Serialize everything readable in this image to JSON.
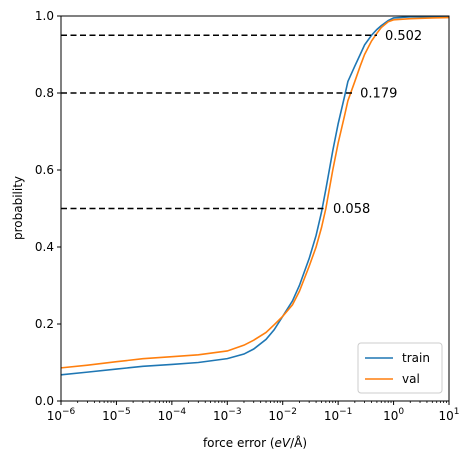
{
  "chart_data": {
    "type": "line",
    "xscale": "log",
    "xlabel_prefix": "force error (",
    "xlabel_unit": "eV",
    "xlabel_suffix": "/Å)",
    "ylabel": "probability",
    "xlim": [
      1e-06,
      10
    ],
    "ylim": [
      0.0,
      1.0
    ],
    "xticks": [
      {
        "exp": "-6",
        "value": 1e-06
      },
      {
        "exp": "-5",
        "value": 1e-05
      },
      {
        "exp": "-4",
        "value": 0.0001
      },
      {
        "exp": "-3",
        "value": 0.001
      },
      {
        "exp": "-2",
        "value": 0.01
      },
      {
        "exp": "-1",
        "value": 0.1
      },
      {
        "exp": "0",
        "value": 1
      },
      {
        "exp": "1",
        "value": 10
      }
    ],
    "yticks": [
      "0.0",
      "0.2",
      "0.4",
      "0.6",
      "0.8",
      "1.0"
    ],
    "legend_position": "bottom-right",
    "series": [
      {
        "name": "train",
        "color": "#1f77b4",
        "x": [
          1e-06,
          3e-06,
          1e-05,
          3e-05,
          0.0001,
          0.0003,
          0.001,
          0.002,
          0.003,
          0.005,
          0.007,
          0.01,
          0.015,
          0.02,
          0.03,
          0.04,
          0.05,
          0.06,
          0.08,
          0.1,
          0.13,
          0.15,
          0.2,
          0.25,
          0.3,
          0.4,
          0.5,
          0.6,
          0.8,
          1,
          2,
          5,
          10
        ],
        "y": [
          0.068,
          0.075,
          0.083,
          0.09,
          0.095,
          0.1,
          0.11,
          0.122,
          0.135,
          0.16,
          0.185,
          0.22,
          0.26,
          0.3,
          0.37,
          0.43,
          0.49,
          0.55,
          0.65,
          0.72,
          0.79,
          0.83,
          0.87,
          0.9,
          0.925,
          0.95,
          0.965,
          0.975,
          0.988,
          0.995,
          0.998,
          0.998,
          0.998
        ]
      },
      {
        "name": "val",
        "color": "#ff7f0e",
        "x": [
          1e-06,
          3e-06,
          1e-05,
          3e-05,
          0.0001,
          0.0003,
          0.001,
          0.002,
          0.003,
          0.005,
          0.007,
          0.01,
          0.015,
          0.02,
          0.03,
          0.04,
          0.05,
          0.06,
          0.08,
          0.1,
          0.13,
          0.15,
          0.2,
          0.25,
          0.3,
          0.4,
          0.5,
          0.6,
          0.8,
          1,
          2,
          5,
          10
        ],
        "y": [
          0.086,
          0.093,
          0.102,
          0.11,
          0.115,
          0.12,
          0.13,
          0.145,
          0.158,
          0.178,
          0.198,
          0.22,
          0.25,
          0.285,
          0.35,
          0.4,
          0.45,
          0.5,
          0.6,
          0.67,
          0.74,
          0.78,
          0.83,
          0.87,
          0.9,
          0.935,
          0.955,
          0.97,
          0.985,
          0.99,
          0.993,
          0.995,
          0.996
        ]
      }
    ],
    "reference_lines": [
      {
        "y": 0.95,
        "x_end": 0.502,
        "label": "0.502"
      },
      {
        "y": 0.8,
        "x_end": 0.179,
        "label": "0.179"
      },
      {
        "y": 0.5,
        "x_end": 0.058,
        "label": "0.058"
      }
    ]
  }
}
